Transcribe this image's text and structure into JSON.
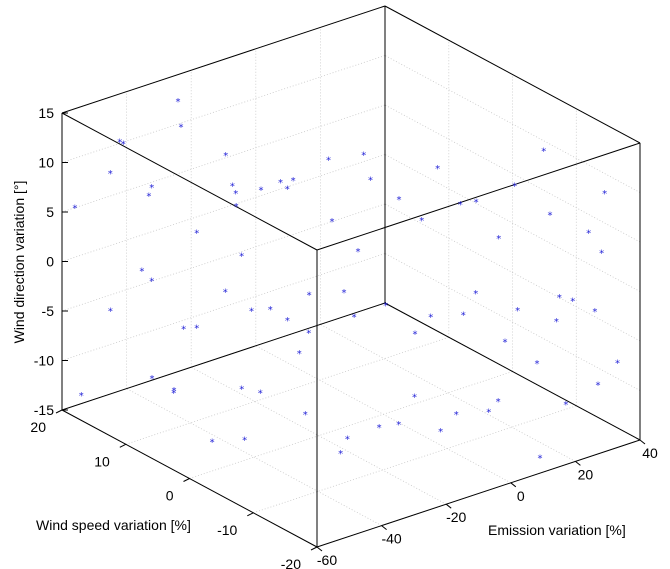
{
  "chart_data": {
    "type": "scatter",
    "projection": "3d",
    "marker": "*",
    "marker_color": "#1f1fd6",
    "grid": true,
    "xlabel": "Emission variation [%]",
    "ylabel": "Wind speed variation [%]",
    "zlabel": "Wind direction variation [°]",
    "xlim": [
      -60,
      40
    ],
    "ylim": [
      -20,
      20
    ],
    "zlim": [
      -15,
      15
    ],
    "xticks": [
      -60,
      -40,
      -20,
      0,
      20,
      40
    ],
    "yticks": [
      -20,
      -10,
      0,
      10,
      20
    ],
    "zticks": [
      -15,
      -10,
      -5,
      0,
      5,
      10,
      15
    ],
    "points": [
      {
        "x": -52,
        "y": 15,
        "z": 13
      },
      {
        "x": -48,
        "y": 12,
        "z": 9
      },
      {
        "x": -45,
        "y": 18,
        "z": 11
      },
      {
        "x": -41,
        "y": 16,
        "z": 6
      },
      {
        "x": -38,
        "y": 10,
        "z": 4
      },
      {
        "x": -35,
        "y": 14,
        "z": 13
      },
      {
        "x": -33,
        "y": 8,
        "z": 12
      },
      {
        "x": -30,
        "y": 17,
        "z": 14
      },
      {
        "x": -28,
        "y": 5,
        "z": 9
      },
      {
        "x": -25,
        "y": 11,
        "z": 7
      },
      {
        "x": -22,
        "y": 3,
        "z": 10
      },
      {
        "x": -20,
        "y": 13,
        "z": 5
      },
      {
        "x": -18,
        "y": 7,
        "z": 8
      },
      {
        "x": -15,
        "y": 1,
        "z": 12
      },
      {
        "x": -12,
        "y": 9,
        "z": 6
      },
      {
        "x": -10,
        "y": -2,
        "z": 13
      },
      {
        "x": -8,
        "y": 4,
        "z": 4
      },
      {
        "x": -5,
        "y": -5,
        "z": 9
      },
      {
        "x": 0,
        "y": 2,
        "z": 8
      },
      {
        "x": 3,
        "y": -7,
        "z": 12
      },
      {
        "x": 6,
        "y": -3,
        "z": 5
      },
      {
        "x": 9,
        "y": -10,
        "z": 9
      },
      {
        "x": 12,
        "y": -6,
        "z": 7
      },
      {
        "x": 15,
        "y": -13,
        "z": 11
      },
      {
        "x": 18,
        "y": -9,
        "z": 4
      },
      {
        "x": 22,
        "y": -15,
        "z": 8
      },
      {
        "x": 26,
        "y": -12,
        "z": 13
      },
      {
        "x": 30,
        "y": -17,
        "z": 6
      },
      {
        "x": -55,
        "y": 10,
        "z": 2
      },
      {
        "x": -50,
        "y": 6,
        "z": -3
      },
      {
        "x": -46,
        "y": 13,
        "z": -1
      },
      {
        "x": -43,
        "y": 3,
        "z": 1
      },
      {
        "x": -40,
        "y": 9,
        "z": -5
      },
      {
        "x": -37,
        "y": -1,
        "z": 0
      },
      {
        "x": -34,
        "y": 5,
        "z": 3
      },
      {
        "x": -31,
        "y": -4,
        "z": -2
      },
      {
        "x": -27,
        "y": 7,
        "z": -4
      },
      {
        "x": -24,
        "y": -6,
        "z": 2
      },
      {
        "x": -21,
        "y": 1,
        "z": -1
      },
      {
        "x": -17,
        "y": -9,
        "z": 1
      },
      {
        "x": -13,
        "y": -2,
        "z": -3
      },
      {
        "x": -9,
        "y": -12,
        "z": 0
      },
      {
        "x": -4,
        "y": -7,
        "z": -4
      },
      {
        "x": 1,
        "y": -14,
        "z": 2
      },
      {
        "x": 5,
        "y": -10,
        "z": -2
      },
      {
        "x": 10,
        "y": -16,
        "z": 0
      },
      {
        "x": 14,
        "y": -12,
        "z": -5
      },
      {
        "x": 19,
        "y": -18,
        "z": 1
      },
      {
        "x": 24,
        "y": -15,
        "z": -3
      },
      {
        "x": 28,
        "y": -19,
        "z": -1
      },
      {
        "x": -57,
        "y": 4,
        "z": -8
      },
      {
        "x": -53,
        "y": 0,
        "z": -12
      },
      {
        "x": -49,
        "y": 8,
        "z": -10
      },
      {
        "x": -44,
        "y": -3,
        "z": -7
      },
      {
        "x": -39,
        "y": 2,
        "z": -14
      },
      {
        "x": -36,
        "y": -6,
        "z": -9
      },
      {
        "x": -32,
        "y": 6,
        "z": -11
      },
      {
        "x": -29,
        "y": -8,
        "z": -13
      },
      {
        "x": -26,
        "y": 0,
        "z": -6
      },
      {
        "x": -23,
        "y": -11,
        "z": -10
      },
      {
        "x": -19,
        "y": -4,
        "z": -14
      },
      {
        "x": -16,
        "y": -13,
        "z": -7
      },
      {
        "x": -11,
        "y": -8,
        "z": -12
      },
      {
        "x": -7,
        "y": -15,
        "z": -9
      },
      {
        "x": -2,
        "y": -10,
        "z": -13
      },
      {
        "x": 2,
        "y": -17,
        "z": -8
      },
      {
        "x": 7,
        "y": -13,
        "z": -11
      },
      {
        "x": 11,
        "y": -19,
        "z": -14
      },
      {
        "x": 16,
        "y": -16,
        "z": -6
      },
      {
        "x": 21,
        "y": -18,
        "z": -10
      },
      {
        "x": 27,
        "y": -20,
        "z": -8
      },
      {
        "x": -58,
        "y": 18,
        "z": -13
      },
      {
        "x": -47,
        "y": 19,
        "z": -6
      },
      {
        "x": -42,
        "y": 15,
        "z": -12
      },
      {
        "x": -56,
        "y": 20,
        "z": 5
      },
      {
        "x": -51,
        "y": 17,
        "z": 9
      },
      {
        "x": 33,
        "y": -18,
        "z": 10
      },
      {
        "x": 36,
        "y": -16,
        "z": 3
      },
      {
        "x": 31,
        "y": -14,
        "z": -2
      },
      {
        "x": 35,
        "y": -19,
        "z": -7
      },
      {
        "x": -6,
        "y": 12,
        "z": -9
      },
      {
        "x": -14,
        "y": 16,
        "z": 2
      },
      {
        "x": 4,
        "y": 6,
        "z": -1
      }
    ]
  }
}
